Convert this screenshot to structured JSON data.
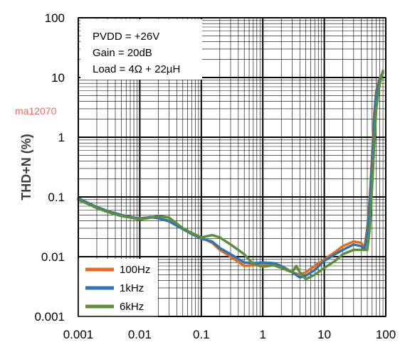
{
  "chart_data": {
    "type": "line",
    "title": "",
    "xlabel": "",
    "ylabel": "THD+N (%)",
    "x_scale": "log",
    "y_scale": "log",
    "xlim": [
      0.001,
      100
    ],
    "ylim": [
      0.001,
      100
    ],
    "x_ticks": [
      0.001,
      0.01,
      0.1,
      1,
      10,
      100
    ],
    "x_tick_labels": [
      "0.001",
      "0.01",
      "0.1",
      "1",
      "10",
      "100"
    ],
    "y_ticks": [
      0.001,
      0.01,
      0.1,
      1,
      10,
      100
    ],
    "y_tick_labels": [
      "0.001",
      "0.01",
      "0.1",
      "1",
      "10",
      "100"
    ],
    "grid": true,
    "watermark": "ma12070",
    "annotation_lines": [
      "PVDD = +26V",
      "Gain = 20dB",
      "Load = 4Ω + 22µH"
    ],
    "legend_position": "bottom-left",
    "series": [
      {
        "name": "100Hz",
        "color": "#e36c1f",
        "points": [
          [
            0.001,
            0.09
          ],
          [
            0.0015,
            0.075
          ],
          [
            0.002,
            0.066
          ],
          [
            0.003,
            0.058
          ],
          [
            0.005,
            0.05
          ],
          [
            0.008,
            0.045
          ],
          [
            0.01,
            0.044
          ],
          [
            0.015,
            0.046
          ],
          [
            0.02,
            0.044
          ],
          [
            0.03,
            0.04
          ],
          [
            0.05,
            0.03
          ],
          [
            0.07,
            0.024
          ],
          [
            0.1,
            0.021
          ],
          [
            0.15,
            0.017
          ],
          [
            0.2,
            0.013
          ],
          [
            0.3,
            0.01
          ],
          [
            0.5,
            0.007
          ],
          [
            0.7,
            0.0072
          ],
          [
            1.0,
            0.0075
          ],
          [
            1.5,
            0.0072
          ],
          [
            2.0,
            0.0065
          ],
          [
            3.0,
            0.0055
          ],
          [
            4.0,
            0.005
          ],
          [
            5.0,
            0.0055
          ],
          [
            7.0,
            0.007
          ],
          [
            10.0,
            0.009
          ],
          [
            15.0,
            0.012
          ],
          [
            20.0,
            0.015
          ],
          [
            30.0,
            0.018
          ],
          [
            40.0,
            0.017
          ],
          [
            45.0,
            0.014
          ],
          [
            50.0,
            0.03
          ],
          [
            55.0,
            0.1
          ],
          [
            60.0,
            0.5
          ],
          [
            65.0,
            2.5
          ],
          [
            70.0,
            6.0
          ],
          [
            80.0,
            10.0
          ],
          [
            90.0,
            12.0
          ]
        ]
      },
      {
        "name": "1kHz",
        "color": "#2e75b6",
        "points": [
          [
            0.001,
            0.095
          ],
          [
            0.0015,
            0.078
          ],
          [
            0.002,
            0.068
          ],
          [
            0.003,
            0.058
          ],
          [
            0.005,
            0.05
          ],
          [
            0.008,
            0.045
          ],
          [
            0.01,
            0.043
          ],
          [
            0.015,
            0.046
          ],
          [
            0.02,
            0.044
          ],
          [
            0.03,
            0.039
          ],
          [
            0.05,
            0.029
          ],
          [
            0.07,
            0.024
          ],
          [
            0.1,
            0.02
          ],
          [
            0.15,
            0.018
          ],
          [
            0.2,
            0.014
          ],
          [
            0.3,
            0.011
          ],
          [
            0.5,
            0.008
          ],
          [
            0.7,
            0.0078
          ],
          [
            1.0,
            0.008
          ],
          [
            1.5,
            0.0078
          ],
          [
            2.0,
            0.007
          ],
          [
            3.0,
            0.0055
          ],
          [
            4.0,
            0.0045
          ],
          [
            5.0,
            0.0048
          ],
          [
            7.0,
            0.006
          ],
          [
            10.0,
            0.0085
          ],
          [
            15.0,
            0.011
          ],
          [
            20.0,
            0.013
          ],
          [
            30.0,
            0.016
          ],
          [
            40.0,
            0.015
          ],
          [
            45.0,
            0.013
          ],
          [
            50.0,
            0.025
          ],
          [
            55.0,
            0.08
          ],
          [
            60.0,
            0.4
          ],
          [
            65.0,
            2.0
          ],
          [
            70.0,
            5.5
          ],
          [
            80.0,
            9.5
          ],
          [
            90.0,
            12.0
          ]
        ]
      },
      {
        "name": "6kHz",
        "color": "#5b8f3a",
        "points": [
          [
            0.001,
            0.09
          ],
          [
            0.0015,
            0.075
          ],
          [
            0.002,
            0.065
          ],
          [
            0.003,
            0.056
          ],
          [
            0.005,
            0.048
          ],
          [
            0.008,
            0.044
          ],
          [
            0.01,
            0.042
          ],
          [
            0.015,
            0.045
          ],
          [
            0.02,
            0.048
          ],
          [
            0.03,
            0.045
          ],
          [
            0.05,
            0.03
          ],
          [
            0.07,
            0.025
          ],
          [
            0.1,
            0.021
          ],
          [
            0.15,
            0.023
          ],
          [
            0.2,
            0.021
          ],
          [
            0.3,
            0.016
          ],
          [
            0.5,
            0.011
          ],
          [
            0.7,
            0.0075
          ],
          [
            1.0,
            0.0068
          ],
          [
            1.5,
            0.0072
          ],
          [
            2.0,
            0.0065
          ],
          [
            3.0,
            0.0055
          ],
          [
            3.5,
            0.007
          ],
          [
            4.0,
            0.0055
          ],
          [
            5.0,
            0.0042
          ],
          [
            7.0,
            0.005
          ],
          [
            10.0,
            0.0065
          ],
          [
            15.0,
            0.0085
          ],
          [
            20.0,
            0.011
          ],
          [
            30.0,
            0.013
          ],
          [
            40.0,
            0.013
          ],
          [
            50.0,
            0.013
          ],
          [
            55.0,
            0.03
          ],
          [
            60.0,
            0.15
          ],
          [
            65.0,
            0.8
          ],
          [
            70.0,
            3.0
          ],
          [
            80.0,
            8.0
          ],
          [
            90.0,
            13.0
          ]
        ]
      }
    ]
  }
}
